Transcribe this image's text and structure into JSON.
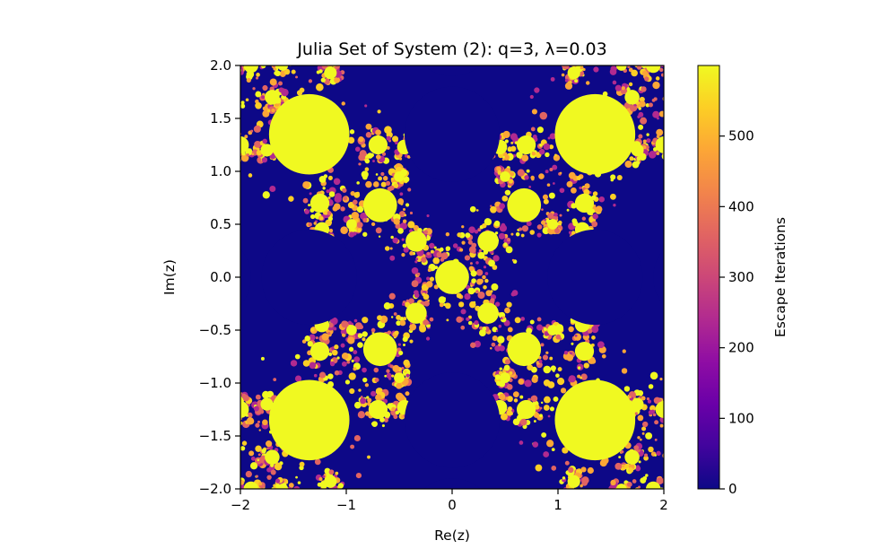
{
  "chart_data": {
    "type": "heatmap",
    "title": "Julia Set of System (2): q=3, λ=0.03",
    "xlabel": "Re(z)",
    "ylabel": "Im(z)",
    "xlim": [
      -2,
      2
    ],
    "ylim": [
      -2,
      2
    ],
    "xticks": [
      -2,
      -1,
      0,
      1,
      2
    ],
    "yticks": [
      -2.0,
      -1.5,
      -1.0,
      -0.5,
      0.0,
      0.5,
      1.0,
      1.5,
      2.0
    ],
    "xtick_labels": [
      "−2",
      "−1",
      "0",
      "1",
      "2"
    ],
    "ytick_labels": [
      "−2.0",
      "−1.5",
      "−1.0",
      "−0.5",
      "0.0",
      "0.5",
      "1.0",
      "1.5",
      "2.0"
    ],
    "colormap": "plasma",
    "colors": {
      "background_basin": "#0d0887",
      "max_iter": "#f0f921"
    },
    "grid": false,
    "colorbar": {
      "label": "Escape Iterations",
      "range": [
        0,
        600
      ],
      "ticks": [
        0,
        100,
        200,
        300,
        400,
        500
      ],
      "tick_labels": [
        "0",
        "100",
        "200",
        "300",
        "400",
        "500"
      ]
    }
  }
}
